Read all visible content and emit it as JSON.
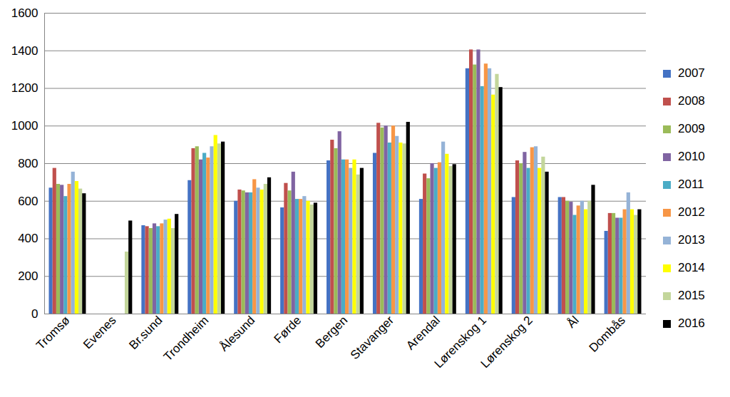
{
  "chart_data": {
    "type": "bar",
    "categories": [
      "Tromsø",
      "Evenes",
      "Br.sund",
      "Trondheim",
      "Ålesund",
      "Førde",
      "Bergen",
      "Stavanger",
      "Arendal",
      "Lørenskog 1",
      "Lørenskog 2",
      "Ål",
      "Dombås"
    ],
    "series": [
      {
        "name": "2007",
        "color": "#4472c4",
        "values": [
          670,
          null,
          470,
          710,
          600,
          565,
          815,
          855,
          610,
          1305,
          620,
          620,
          440
        ]
      },
      {
        "name": "2008",
        "color": "#c0504d",
        "values": [
          775,
          null,
          465,
          880,
          660,
          695,
          925,
          1015,
          745,
          1405,
          815,
          620,
          535
        ]
      },
      {
        "name": "2009",
        "color": "#9bbb59",
        "values": [
          690,
          null,
          455,
          890,
          655,
          655,
          880,
          990,
          720,
          1325,
          800,
          600,
          535
        ]
      },
      {
        "name": "2010",
        "color": "#8064a2",
        "values": [
          685,
          null,
          480,
          820,
          645,
          755,
          970,
          1000,
          800,
          1405,
          860,
          595,
          510
        ]
      },
      {
        "name": "2011",
        "color": "#4bacc6",
        "values": [
          625,
          null,
          465,
          855,
          645,
          610,
          820,
          910,
          775,
          1210,
          775,
          525,
          510
        ]
      },
      {
        "name": "2012",
        "color": "#f79646",
        "values": [
          690,
          null,
          480,
          830,
          715,
          610,
          820,
          1000,
          805,
          1330,
          885,
          575,
          555
        ]
      },
      {
        "name": "2013",
        "color": "#95b3d7",
        "values": [
          755,
          null,
          500,
          890,
          670,
          625,
          775,
          945,
          915,
          1305,
          890,
          600,
          645
        ]
      },
      {
        "name": "2014",
        "color": "#ffff00",
        "values": [
          705,
          null,
          505,
          950,
          660,
          600,
          820,
          910,
          850,
          1165,
          775,
          555,
          555
        ]
      },
      {
        "name": "2015",
        "color": "#c3d69b",
        "values": [
          665,
          330,
          455,
          905,
          690,
          580,
          740,
          905,
          785,
          1275,
          835,
          600,
          525
        ]
      },
      {
        "name": "2016",
        "color": "#000000",
        "values": [
          640,
          495,
          530,
          915,
          725,
          590,
          775,
          1020,
          795,
          1205,
          755,
          685,
          555
        ]
      }
    ],
    "ylim": [
      0,
      1600
    ],
    "yticks": [
      0,
      200,
      400,
      600,
      800,
      1000,
      1200,
      1400,
      1600
    ],
    "grid": true,
    "legend": "right"
  }
}
